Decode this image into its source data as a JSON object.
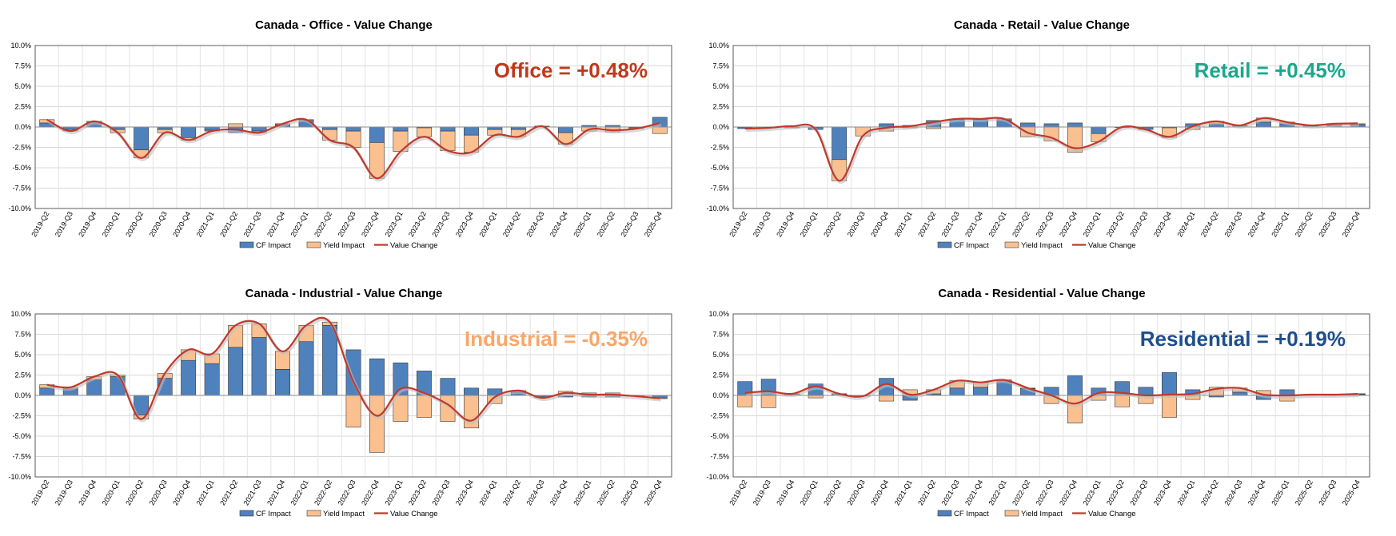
{
  "chart_data": [
    {
      "type": "bar",
      "title": "Canada - Office - Value Change",
      "annotation": "Office = +0.48%",
      "annotation_color": "#C0391B",
      "categories": [
        "2019-Q2",
        "2019-Q3",
        "2019-Q4",
        "2020-Q1",
        "2020-Q2",
        "2020-Q3",
        "2020-Q4",
        "2021-Q1",
        "2021-Q2",
        "2021-Q3",
        "2021-Q4",
        "2022-Q1",
        "2022-Q2",
        "2022-Q3",
        "2022-Q4",
        "2023-Q1",
        "2023-Q2",
        "2023-Q3",
        "2023-Q4",
        "2024-Q1",
        "2024-Q2",
        "2024-Q3",
        "2024-Q4",
        "2025-Q1",
        "2025-Q2",
        "2025-Q3",
        "2025-Q4"
      ],
      "ytick_labels": [
        "10.0%",
        "7.5%",
        "5.0%",
        "2.5%",
        "0.0%",
        "-2.5%",
        "-5.0%",
        "-7.5%",
        "-10.0%"
      ],
      "ylim": [
        -10,
        10
      ],
      "series": [
        {
          "name": "CF Impact",
          "color": "#4F81BD",
          "values": [
            0.5,
            -0.3,
            0.6,
            -0.3,
            -2.8,
            -0.3,
            -1.3,
            -0.4,
            -0.7,
            -0.5,
            0.3,
            0.8,
            -0.3,
            -0.5,
            -1.9,
            -0.5,
            -0.1,
            -0.5,
            -1.0,
            -0.3,
            -0.3,
            0.1,
            -0.7,
            0.2,
            0.2,
            -0.1,
            1.2
          ]
        },
        {
          "name": "Yield Impact",
          "color": "#FAC090",
          "values": [
            0.4,
            -0.2,
            0.1,
            -0.4,
            -1.0,
            -0.4,
            -0.3,
            -0.1,
            0.4,
            -0.2,
            0.1,
            0.1,
            -1.3,
            -2.0,
            -4.4,
            -2.5,
            -1.1,
            -2.4,
            -2.1,
            -0.7,
            -0.9,
            0.0,
            -1.4,
            -0.5,
            -0.6,
            -0.1,
            -0.8
          ]
        },
        {
          "name": "Value Change",
          "color": "#C0392B",
          "values": [
            0.9,
            -0.5,
            0.7,
            -0.7,
            -3.8,
            -0.7,
            -1.6,
            -0.5,
            -0.3,
            -0.7,
            0.4,
            0.9,
            -1.6,
            -2.5,
            -6.3,
            -3.0,
            -1.2,
            -2.9,
            -3.1,
            -1.0,
            -1.2,
            0.1,
            -2.1,
            -0.3,
            -0.4,
            -0.2,
            0.48
          ]
        }
      ],
      "legend": [
        "CF Impact",
        "Yield Impact",
        "Value Change"
      ]
    },
    {
      "type": "bar",
      "title": "Canada - Retail - Value Change",
      "annotation": "Retail = +0.45%",
      "annotation_color": "#1AA88C",
      "categories": [
        "2019-Q2",
        "2019-Q3",
        "2019-Q4",
        "2020-Q1",
        "2020-Q2",
        "2020-Q3",
        "2020-Q4",
        "2021-Q1",
        "2021-Q2",
        "2021-Q3",
        "2021-Q4",
        "2022-Q1",
        "2022-Q2",
        "2022-Q3",
        "2022-Q4",
        "2023-Q1",
        "2023-Q2",
        "2023-Q3",
        "2023-Q4",
        "2024-Q1",
        "2024-Q2",
        "2024-Q3",
        "2024-Q4",
        "2025-Q1",
        "2025-Q2",
        "2025-Q3",
        "2025-Q4"
      ],
      "ytick_labels": [
        "10.0%",
        "7.5%",
        "5.0%",
        "2.5%",
        "0.0%",
        "-2.5%",
        "-5.0%",
        "-7.5%",
        "-10.0%"
      ],
      "ylim": [
        -10,
        10
      ],
      "series": [
        {
          "name": "CF Impact",
          "color": "#4F81BD",
          "values": [
            -0.2,
            -0.1,
            -0.1,
            -0.3,
            -4.0,
            0.0,
            0.4,
            0.2,
            0.8,
            0.9,
            0.9,
            0.9,
            0.5,
            0.4,
            0.5,
            -0.8,
            0.0,
            -0.3,
            -0.1,
            0.4,
            0.4,
            0.2,
            0.6,
            0.4,
            0.2,
            0.2,
            0.3
          ]
        },
        {
          "name": "Yield Impact",
          "color": "#FAC090",
          "values": [
            0.0,
            0.0,
            0.0,
            0.0,
            -2.6,
            -1.1,
            -0.5,
            -0.1,
            -0.2,
            0.1,
            0.1,
            0.1,
            -1.2,
            -1.7,
            -3.1,
            -1.0,
            0.0,
            0.0,
            -1.2,
            -0.3,
            0.3,
            0.0,
            0.5,
            0.2,
            0.0,
            0.2,
            0.1
          ]
        },
        {
          "name": "Value Change",
          "color": "#C0392B",
          "values": [
            -0.2,
            -0.1,
            0.1,
            -0.3,
            -6.6,
            -1.1,
            -0.1,
            0.1,
            0.6,
            1.0,
            1.0,
            1.0,
            -0.7,
            -1.3,
            -2.6,
            -1.8,
            0.0,
            -0.3,
            -1.2,
            0.1,
            0.7,
            0.2,
            1.1,
            0.6,
            0.2,
            0.4,
            0.45
          ]
        }
      ],
      "legend": [
        "CF Impact",
        "Yield Impact",
        "Value Change"
      ]
    },
    {
      "type": "bar",
      "title": "Canada - Industrial - Value Change",
      "annotation": "Industrial = -0.35%",
      "annotation_color": "#F9A66A",
      "categories": [
        "2019-Q2",
        "2019-Q3",
        "2019-Q4",
        "2020-Q1",
        "2020-Q2",
        "2020-Q3",
        "2020-Q4",
        "2021-Q1",
        "2021-Q2",
        "2021-Q3",
        "2021-Q4",
        "2022-Q1",
        "2022-Q2",
        "2022-Q3",
        "2022-Q4",
        "2023-Q1",
        "2023-Q2",
        "2023-Q3",
        "2023-Q4",
        "2024-Q1",
        "2024-Q2",
        "2024-Q3",
        "2024-Q4",
        "2025-Q1",
        "2025-Q2",
        "2025-Q3",
        "2025-Q4"
      ],
      "ytick_labels": [
        "10.0%",
        "7.5%",
        "5.0%",
        "2.5%",
        "0.0%",
        "-2.5%",
        "-5.0%",
        "-7.5%",
        "-10.0%"
      ],
      "ylim": [
        -10,
        10
      ],
      "series": [
        {
          "name": "CF Impact",
          "color": "#4F81BD",
          "values": [
            0.9,
            0.8,
            1.9,
            2.3,
            -2.4,
            2.1,
            4.3,
            3.9,
            5.9,
            7.1,
            3.2,
            6.6,
            8.6,
            5.6,
            4.5,
            4.0,
            3.0,
            2.1,
            0.9,
            0.8,
            0.4,
            -0.2,
            -0.2,
            -0.2,
            -0.2,
            0.0,
            -0.3
          ]
        },
        {
          "name": "Yield Impact",
          "color": "#FAC090",
          "values": [
            0.4,
            0.2,
            0.4,
            0.2,
            -0.5,
            0.6,
            1.3,
            1.2,
            2.7,
            1.7,
            2.2,
            2.0,
            0.4,
            -3.9,
            -7.0,
            -3.2,
            -2.7,
            -3.2,
            -4.0,
            -1.0,
            0.2,
            -0.1,
            0.5,
            0.3,
            0.3,
            -0.1,
            -0.1
          ]
        },
        {
          "name": "Value Change",
          "color": "#C0392B",
          "values": [
            1.3,
            1.0,
            2.3,
            2.5,
            -2.9,
            2.7,
            5.6,
            5.1,
            8.6,
            8.8,
            5.4,
            8.6,
            9.0,
            1.7,
            -2.5,
            0.8,
            0.3,
            -1.1,
            -3.1,
            -0.2,
            0.6,
            -0.3,
            0.3,
            0.1,
            0.1,
            -0.1,
            -0.35
          ]
        }
      ],
      "legend": [
        "CF Impact",
        "Yield Impact",
        "Value Change"
      ]
    },
    {
      "type": "bar",
      "title": "Canada - Residential - Value Change",
      "annotation": "Residential = +0.19%",
      "annotation_color": "#1F4E8C",
      "categories": [
        "2019-Q2",
        "2019-Q3",
        "2019-Q4",
        "2020-Q1",
        "2020-Q2",
        "2020-Q3",
        "2020-Q4",
        "2021-Q1",
        "2021-Q2",
        "2021-Q3",
        "2021-Q4",
        "2022-Q1",
        "2022-Q2",
        "2022-Q3",
        "2022-Q4",
        "2023-Q1",
        "2023-Q2",
        "2023-Q3",
        "2023-Q4",
        "2024-Q1",
        "2024-Q2",
        "2024-Q3",
        "2024-Q4",
        "2025-Q1",
        "2025-Q2",
        "2025-Q3",
        "2025-Q4"
      ],
      "ytick_labels": [
        "10.0%",
        "7.5%",
        "5.0%",
        "2.5%",
        "0.0%",
        "-2.5%",
        "-5.0%",
        "-7.5%",
        "-10.0%"
      ],
      "ylim": [
        -10,
        10
      ],
      "series": [
        {
          "name": "CF Impact",
          "color": "#4F81BD",
          "values": [
            1.7,
            2.0,
            0.2,
            1.4,
            0.2,
            -0.1,
            2.1,
            -0.6,
            0.2,
            0.9,
            1.0,
            1.8,
            0.9,
            1.0,
            2.4,
            0.9,
            1.7,
            1.0,
            2.8,
            0.7,
            -0.2,
            0.4,
            -0.5,
            0.7,
            0.1,
            0.1,
            0.2
          ]
        },
        {
          "name": "Yield Impact",
          "color": "#FAC090",
          "values": [
            -1.4,
            -1.5,
            0.0,
            -0.3,
            0.0,
            0.0,
            -0.7,
            0.7,
            0.5,
            0.9,
            0.6,
            0.1,
            0.0,
            -1.0,
            -3.4,
            -0.6,
            -1.4,
            -1.0,
            -2.7,
            -0.5,
            1.0,
            0.5,
            0.6,
            -0.7,
            0.0,
            0.0,
            0.0
          ]
        },
        {
          "name": "Value Change",
          "color": "#C0392B",
          "values": [
            0.3,
            0.5,
            0.2,
            1.1,
            0.2,
            -0.1,
            1.4,
            0.1,
            0.7,
            1.8,
            1.6,
            1.9,
            0.9,
            0.0,
            -1.0,
            0.3,
            0.3,
            0.0,
            0.1,
            0.2,
            0.8,
            0.9,
            0.1,
            0.0,
            0.1,
            0.1,
            0.19
          ]
        }
      ],
      "legend": [
        "CF Impact",
        "Yield Impact",
        "Value Change"
      ]
    }
  ]
}
